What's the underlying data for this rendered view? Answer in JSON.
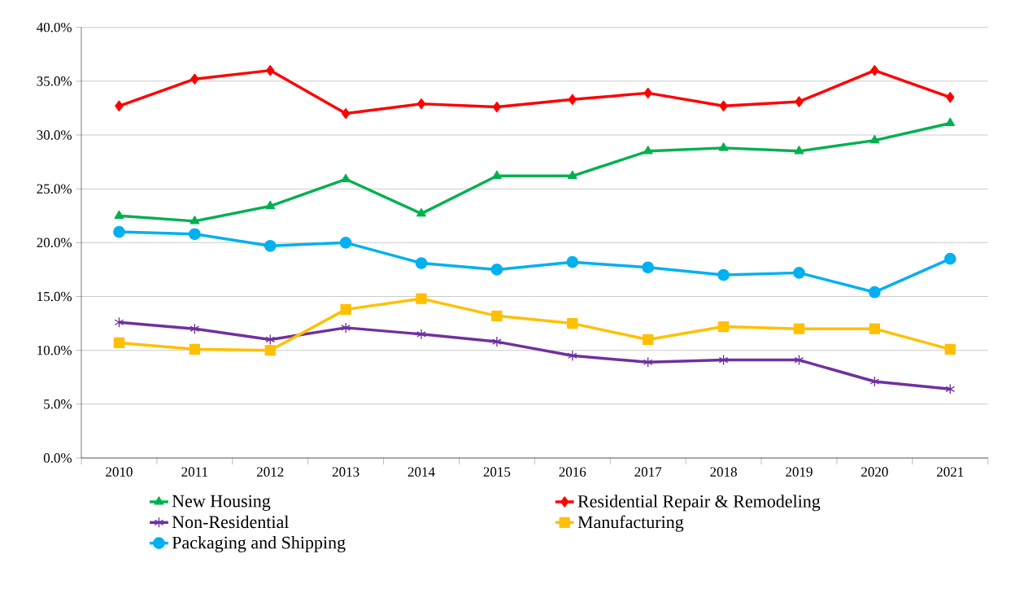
{
  "chart_data": {
    "type": "line",
    "categories": [
      "2010",
      "2011",
      "2012",
      "2013",
      "2014",
      "2015",
      "2016",
      "2017",
      "2018",
      "2019",
      "2020",
      "2021"
    ],
    "series": [
      {
        "name": "New Housing",
        "color": "#00b050",
        "marker": "triangle",
        "values": [
          22.5,
          22.0,
          23.4,
          25.9,
          22.7,
          26.2,
          26.2,
          28.5,
          28.8,
          28.5,
          29.5,
          31.1
        ]
      },
      {
        "name": "Residential Repair & Remodeling",
        "color": "#ff0000",
        "marker": "diamond",
        "values": [
          32.7,
          35.2,
          36.0,
          32.0,
          32.9,
          32.6,
          33.3,
          33.9,
          32.7,
          33.1,
          36.0,
          33.5
        ]
      },
      {
        "name": "Non-Residential",
        "color": "#7030a0",
        "marker": "cross",
        "values": [
          12.6,
          12.0,
          11.0,
          12.1,
          11.5,
          10.8,
          9.5,
          8.9,
          9.1,
          9.1,
          7.1,
          6.4
        ]
      },
      {
        "name": "Manufacturing",
        "color": "#ffc000",
        "marker": "square",
        "values": [
          10.7,
          10.1,
          10.0,
          13.8,
          14.8,
          13.2,
          12.5,
          11.0,
          12.2,
          12.0,
          12.0,
          10.1
        ]
      },
      {
        "name": "Packaging and Shipping",
        "color": "#00b0f0",
        "marker": "circle",
        "values": [
          21.0,
          20.8,
          19.7,
          20.0,
          18.1,
          17.5,
          18.2,
          17.7,
          17.0,
          17.2,
          15.4,
          18.5
        ]
      }
    ],
    "ylim": [
      0,
      40
    ],
    "yticks": [
      {
        "value": 0,
        "label": "0.0%"
      },
      {
        "value": 5,
        "label": "5.0%"
      },
      {
        "value": 10,
        "label": "10.0%"
      },
      {
        "value": 15,
        "label": "15.0%"
      },
      {
        "value": 20,
        "label": "20.0%"
      },
      {
        "value": 25,
        "label": "25.0%"
      },
      {
        "value": 30,
        "label": "30.0%"
      },
      {
        "value": 35,
        "label": "35.0%"
      },
      {
        "value": 40,
        "label": "40.0%"
      }
    ],
    "grid": "y",
    "legend": "bottom",
    "line_style": "solid"
  }
}
